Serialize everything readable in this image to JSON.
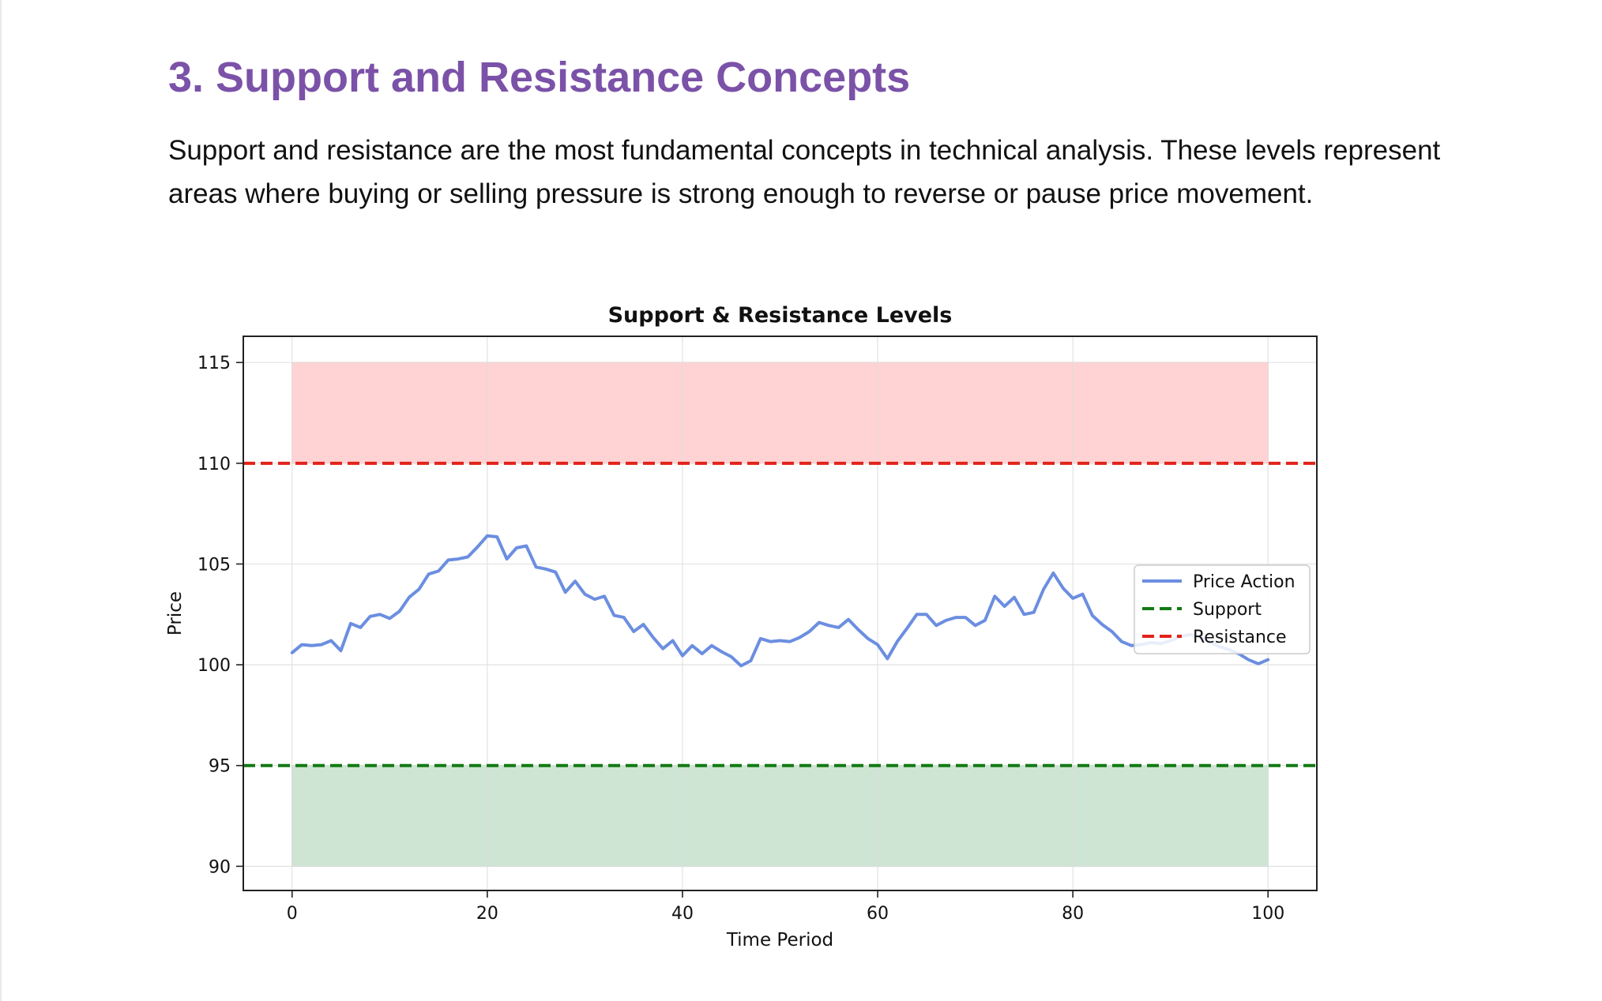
{
  "page": {
    "heading": "3. Support and Resistance Concepts",
    "paragraph": "Support and resistance are the most fundamental concepts in technical analysis. These levels represent areas where buying or selling pressure is strong enough to reverse or pause price movement."
  },
  "chart_data": {
    "type": "line",
    "title": "Support & Resistance Levels",
    "xlabel": "Time Period",
    "ylabel": "Price",
    "xlim": [
      -5,
      105
    ],
    "ylim": [
      88.8,
      116.3
    ],
    "xticks": [
      0,
      20,
      40,
      60,
      80,
      100
    ],
    "yticks": [
      90,
      95,
      100,
      105,
      110,
      115
    ],
    "grid": true,
    "legend_position": "center-right",
    "colors": {
      "price": "#6b8ee0",
      "support": "#137a13",
      "resistance": "#e2231a",
      "support_zone": "#cfe5d4",
      "resistance_zone": "#ffd3d3"
    },
    "series": [
      {
        "name": "Price Action",
        "style": "solid",
        "x": [
          0,
          1,
          2,
          3,
          4,
          5,
          6,
          7,
          8,
          9,
          10,
          11,
          12,
          13,
          14,
          15,
          16,
          17,
          18,
          19,
          20,
          21,
          22,
          23,
          24,
          25,
          26,
          27,
          28,
          29,
          30,
          31,
          32,
          33,
          34,
          35,
          36,
          37,
          38,
          39,
          40,
          41,
          42,
          43,
          44,
          45,
          46,
          47,
          48,
          49,
          50,
          51,
          52,
          53,
          54,
          55,
          56,
          57,
          58,
          59,
          60,
          61,
          62,
          63,
          64,
          65,
          66,
          67,
          68,
          69,
          70,
          71,
          72,
          73,
          74,
          75,
          76,
          77,
          78,
          79,
          80,
          81,
          82,
          83,
          84,
          85,
          86,
          87,
          88,
          89,
          90,
          91,
          92,
          93,
          94,
          95,
          96,
          97,
          98,
          99,
          100
        ],
        "y": [
          100.6,
          101.0,
          100.95,
          101.0,
          101.2,
          100.7,
          102.05,
          101.85,
          102.4,
          102.5,
          102.3,
          102.65,
          103.35,
          103.75,
          104.5,
          104.65,
          105.2,
          105.25,
          105.35,
          105.85,
          106.4,
          106.35,
          105.25,
          105.8,
          105.9,
          104.85,
          104.75,
          104.6,
          103.6,
          104.15,
          103.5,
          103.25,
          103.4,
          102.45,
          102.35,
          101.65,
          102.0,
          101.35,
          100.8,
          101.2,
          100.45,
          100.95,
          100.55,
          100.95,
          100.65,
          100.4,
          99.95,
          100.2,
          101.3,
          101.15,
          101.2,
          101.15,
          101.35,
          101.65,
          102.1,
          101.95,
          101.85,
          102.25,
          101.75,
          101.3,
          101.0,
          100.3,
          101.15,
          101.8,
          102.5,
          102.5,
          101.95,
          102.2,
          102.35,
          102.35,
          101.95,
          102.2,
          103.4,
          102.9,
          103.35,
          102.5,
          102.6,
          103.75,
          104.55,
          103.8,
          103.3,
          103.5,
          102.45,
          102.0,
          101.65,
          101.15,
          100.95,
          101.0,
          101.1,
          101.05,
          101.2,
          101.4,
          101.5,
          101.4,
          101.15,
          100.9,
          100.75,
          100.55,
          100.25,
          100.05,
          100.25
        ]
      },
      {
        "name": "Support",
        "style": "dashed",
        "level": 95
      },
      {
        "name": "Resistance",
        "style": "dashed",
        "level": 110
      }
    ],
    "zones": [
      {
        "x": [
          0,
          100
        ],
        "y": [
          90,
          95
        ],
        "color": "#cfe5d4"
      },
      {
        "x": [
          0,
          100
        ],
        "y": [
          110,
          115
        ],
        "color": "#ffd3d3"
      }
    ]
  }
}
